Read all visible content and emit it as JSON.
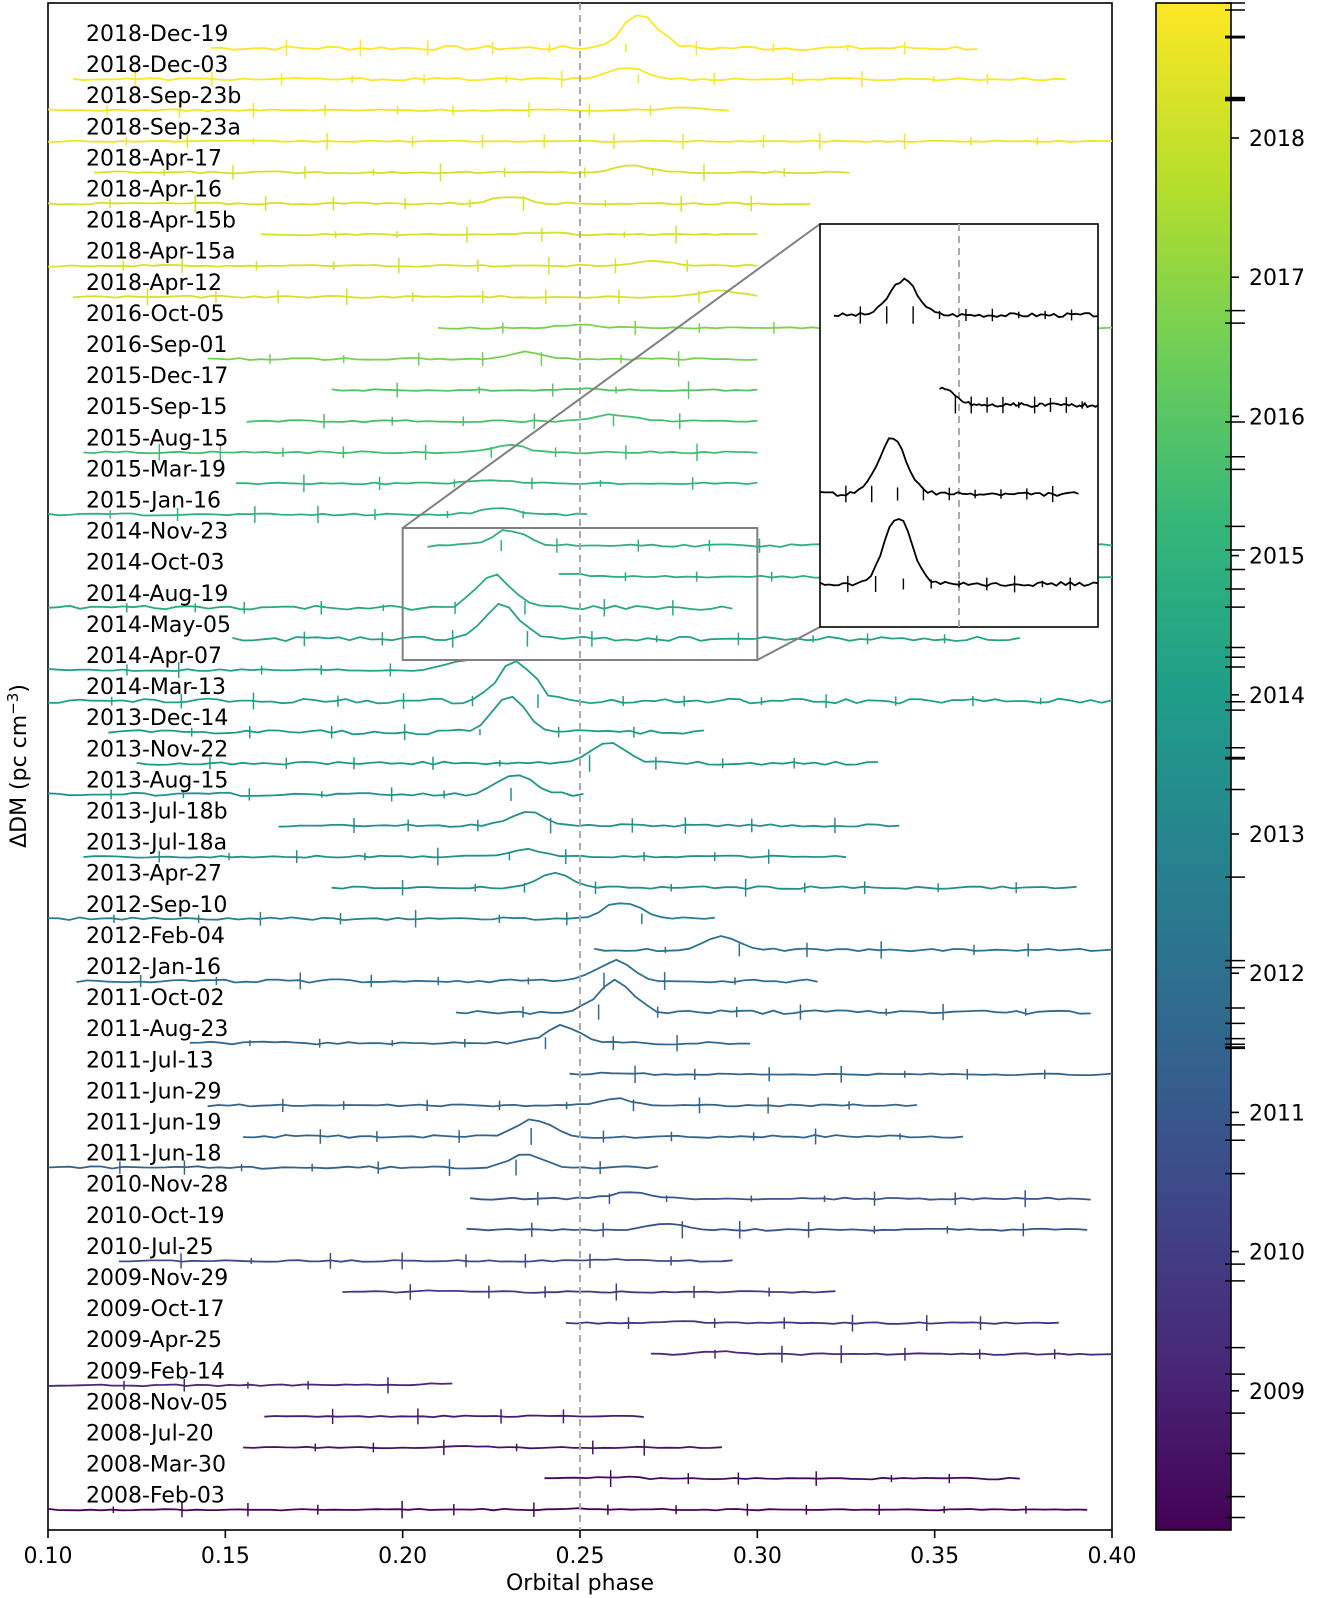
{
  "chart_data": {
    "type": "line",
    "xlabel": "Orbital phase",
    "ylabel": "ΔDM (pc cm",
    "ylabel_superscript": "−3",
    "ylabel_suffix": ")",
    "xlim": [
      0.1,
      0.4
    ],
    "x_ticks": [
      "0.10",
      "0.15",
      "0.20",
      "0.25",
      "0.30",
      "0.35",
      "0.40"
    ],
    "reference_line_x": 0.25,
    "colormap": "viridis",
    "colorbar_ticks": [
      "2009",
      "2010",
      "2011",
      "2012",
      "2013",
      "2014",
      "2015",
      "2016",
      "2017",
      "2018"
    ],
    "colorbar_range": [
      2008.0,
      2018.97
    ],
    "epochs": [
      {
        "label": "2018-Dec-19",
        "year": 2018.97,
        "x": [
          0.146,
          0.362
        ],
        "peak_x": 0.267,
        "peak_amp": 1.0
      },
      {
        "label": "2018-Dec-03",
        "year": 2018.92,
        "x": [
          0.107,
          0.387
        ],
        "peak_x": 0.263,
        "peak_amp": 0.35
      },
      {
        "label": "2018-Sep-23b",
        "year": 2018.73,
        "x": [
          0.1,
          0.292
        ],
        "peak_x": 0.28,
        "peak_amp": 0.1
      },
      {
        "label": "2018-Sep-23a",
        "year": 2018.72,
        "x": [
          0.1,
          0.4
        ],
        "peak_x": 0.25,
        "peak_amp": 0.0
      },
      {
        "label": "2018-Apr-17",
        "year": 2018.29,
        "x": [
          0.113,
          0.326
        ],
        "peak_x": 0.265,
        "peak_amp": 0.2
      },
      {
        "label": "2018-Apr-16",
        "year": 2018.29,
        "x": [
          0.1,
          0.315
        ],
        "peak_x": 0.23,
        "peak_amp": 0.2
      },
      {
        "label": "2018-Apr-15b",
        "year": 2018.28,
        "x": [
          0.16,
          0.3
        ],
        "peak_x": 0.24,
        "peak_amp": 0.05
      },
      {
        "label": "2018-Apr-15a",
        "year": 2018.28,
        "x": [
          0.1,
          0.3
        ],
        "peak_x": 0.27,
        "peak_amp": 0.15
      },
      {
        "label": "2018-Apr-12",
        "year": 2018.27,
        "x": [
          0.107,
          0.3
        ],
        "peak_x": 0.29,
        "peak_amp": 0.2
      },
      {
        "label": "2016-Oct-05",
        "year": 2016.76,
        "x": [
          0.21,
          0.4
        ],
        "peak_x": 0.25,
        "peak_amp": 0.1
      },
      {
        "label": "2016-Sep-01",
        "year": 2016.67,
        "x": [
          0.145,
          0.3
        ],
        "peak_x": 0.235,
        "peak_amp": 0.2
      },
      {
        "label": "2015-Dec-17",
        "year": 2015.96,
        "x": [
          0.18,
          0.3
        ],
        "peak_x": 0.25,
        "peak_amp": 0.05
      },
      {
        "label": "2015-Sep-15",
        "year": 2015.71,
        "x": [
          0.156,
          0.3
        ],
        "peak_x": 0.26,
        "peak_amp": 0.2
      },
      {
        "label": "2015-Aug-15",
        "year": 2015.62,
        "x": [
          0.11,
          0.3
        ],
        "peak_x": 0.23,
        "peak_amp": 0.2
      },
      {
        "label": "2015-Mar-19",
        "year": 2015.21,
        "x": [
          0.153,
          0.3
        ],
        "peak_x": 0.225,
        "peak_amp": 0.1
      },
      {
        "label": "2015-Jan-16",
        "year": 2015.04,
        "x": [
          0.1,
          0.252
        ],
        "peak_x": 0.227,
        "peak_amp": 0.2
      },
      {
        "label": "2014-Nov-23",
        "year": 2014.9,
        "x": [
          0.207,
          0.4
        ],
        "peak_x": 0.23,
        "peak_amp": 0.45
      },
      {
        "label": "2014-Oct-03",
        "year": 2014.76,
        "x": [
          0.244,
          0.4
        ],
        "peak_x": 0.246,
        "peak_amp": 0.1
      },
      {
        "label": "2014-Aug-19",
        "year": 2014.63,
        "x": [
          0.1,
          0.293
        ],
        "peak_x": 0.226,
        "peak_amp": 0.95
      },
      {
        "label": "2014-May-05",
        "year": 2014.34,
        "x": [
          0.152,
          0.374
        ],
        "peak_x": 0.228,
        "peak_amp": 1.0
      },
      {
        "label": "2014-Apr-07",
        "year": 2014.27,
        "x": [
          0.1,
          0.218
        ],
        "peak_x": 0.217,
        "peak_amp": 0.3
      },
      {
        "label": "2014-Mar-13",
        "year": 2014.2,
        "x": [
          0.1,
          0.4
        ],
        "peak_x": 0.232,
        "peak_amp": 1.2
      },
      {
        "label": "2013-Dec-14",
        "year": 2013.95,
        "x": [
          0.117,
          0.285
        ],
        "peak_x": 0.23,
        "peak_amp": 1.0
      },
      {
        "label": "2013-Nov-22",
        "year": 2013.89,
        "x": [
          0.125,
          0.334
        ],
        "peak_x": 0.258,
        "peak_amp": 0.6
      },
      {
        "label": "2013-Aug-15",
        "year": 2013.62,
        "x": [
          0.1,
          0.251
        ],
        "peak_x": 0.232,
        "peak_amp": 0.6
      },
      {
        "label": "2013-Jul-18b",
        "year": 2013.55,
        "x": [
          0.165,
          0.34
        ],
        "peak_x": 0.235,
        "peak_amp": 0.4
      },
      {
        "label": "2013-Jul-18a",
        "year": 2013.54,
        "x": [
          0.11,
          0.325
        ],
        "peak_x": 0.235,
        "peak_amp": 0.2
      },
      {
        "label": "2013-Apr-27",
        "year": 2013.32,
        "x": [
          0.18,
          0.39
        ],
        "peak_x": 0.243,
        "peak_amp": 0.4
      },
      {
        "label": "2012-Sep-10",
        "year": 2012.69,
        "x": [
          0.1,
          0.288
        ],
        "peak_x": 0.262,
        "peak_amp": 0.5
      },
      {
        "label": "2012-Feb-04",
        "year": 2012.09,
        "x": [
          0.254,
          0.4
        ],
        "peak_x": 0.29,
        "peak_amp": 0.4
      },
      {
        "label": "2012-Jan-16",
        "year": 2012.04,
        "x": [
          0.108,
          0.317
        ],
        "peak_x": 0.26,
        "peak_amp": 0.6
      },
      {
        "label": "2011-Oct-02",
        "year": 2011.75,
        "x": [
          0.215,
          0.394
        ],
        "peak_x": 0.26,
        "peak_amp": 0.9
      },
      {
        "label": "2011-Aug-23",
        "year": 2011.64,
        "x": [
          0.14,
          0.298
        ],
        "peak_x": 0.245,
        "peak_amp": 0.5
      },
      {
        "label": "2011-Jul-13",
        "year": 2011.53,
        "x": [
          0.247,
          0.4
        ],
        "peak_x": 0.26,
        "peak_amp": 0.05
      },
      {
        "label": "2011-Jun-29",
        "year": 2011.49,
        "x": [
          0.145,
          0.345
        ],
        "peak_x": 0.26,
        "peak_amp": 0.2
      },
      {
        "label": "2011-Jun-19",
        "year": 2011.47,
        "x": [
          0.155,
          0.358
        ],
        "peak_x": 0.237,
        "peak_amp": 0.5
      },
      {
        "label": "2011-Jun-18",
        "year": 2011.46,
        "x": [
          0.1,
          0.272
        ],
        "peak_x": 0.235,
        "peak_amp": 0.4
      },
      {
        "label": "2010-Nov-28",
        "year": 2010.91,
        "x": [
          0.219,
          0.394
        ],
        "peak_x": 0.264,
        "peak_amp": 0.2
      },
      {
        "label": "2010-Oct-19",
        "year": 2010.8,
        "x": [
          0.218,
          0.393
        ],
        "peak_x": 0.275,
        "peak_amp": 0.2
      },
      {
        "label": "2010-Jul-25",
        "year": 2010.56,
        "x": [
          0.12,
          0.293
        ],
        "peak_x": 0.26,
        "peak_amp": 0.05
      },
      {
        "label": "2009-Nov-29",
        "year": 2009.91,
        "x": [
          0.183,
          0.322
        ],
        "peak_x": 0.21,
        "peak_amp": 0.05
      },
      {
        "label": "2009-Oct-17",
        "year": 2009.79,
        "x": [
          0.246,
          0.385
        ],
        "peak_x": 0.28,
        "peak_amp": 0.05
      },
      {
        "label": "2009-Apr-25",
        "year": 2009.31,
        "x": [
          0.27,
          0.4
        ],
        "peak_x": 0.29,
        "peak_amp": 0.1
      },
      {
        "label": "2009-Feb-14",
        "year": 2009.12,
        "x": [
          0.1,
          0.214
        ],
        "peak_x": 0.21,
        "peak_amp": 0.05
      },
      {
        "label": "2008-Nov-05",
        "year": 2008.84,
        "x": [
          0.161,
          0.268
        ],
        "peak_x": 0.24,
        "peak_amp": 0.02
      },
      {
        "label": "2008-Jul-20",
        "year": 2008.55,
        "x": [
          0.155,
          0.29
        ],
        "peak_x": 0.215,
        "peak_amp": 0.05
      },
      {
        "label": "2008-Mar-30",
        "year": 2008.24,
        "x": [
          0.24,
          0.374
        ],
        "peak_x": 0.26,
        "peak_amp": 0.05
      },
      {
        "label": "2008-Feb-03",
        "year": 2008.09,
        "x": [
          0.1,
          0.393
        ],
        "peak_x": 0.25,
        "peak_amp": 0.03
      }
    ],
    "inset": {
      "zoom_xlim": [
        0.2,
        0.3
      ],
      "series": [
        {
          "epoch": "2014-Nov-23",
          "x": [
            0.205,
            0.3
          ],
          "peak_x": 0.23,
          "peak_amp": 1.0
        },
        {
          "epoch": "2014-Oct-03",
          "x": [
            0.243,
            0.3
          ],
          "peak_x": 0.243,
          "peak_amp": 0.5
        },
        {
          "epoch": "2014-Aug-19",
          "x": [
            0.2,
            0.293
          ],
          "peak_x": 0.226,
          "peak_amp": 1.6
        },
        {
          "epoch": "2014-May-05",
          "x": [
            0.2,
            0.3
          ],
          "peak_x": 0.228,
          "peak_amp": 1.9
        }
      ]
    }
  }
}
